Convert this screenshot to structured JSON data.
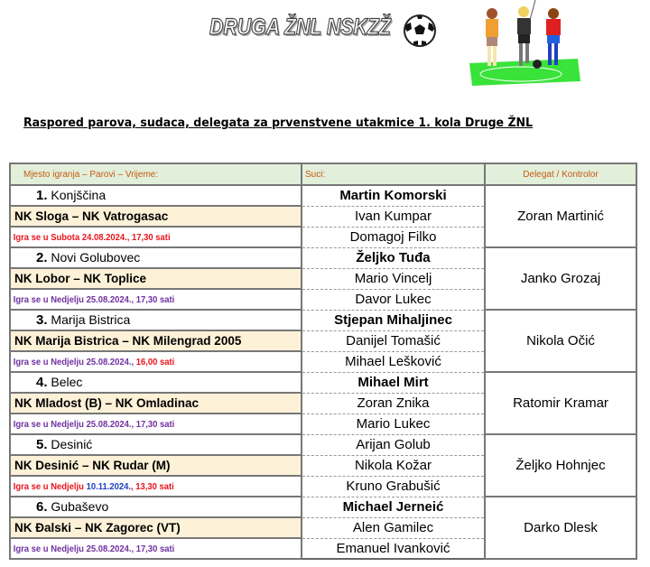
{
  "header": {
    "title": "DRUGA ŽNL NSKZŽ",
    "ball_icon": "soccer-ball-icon",
    "illustration": "referee-and-players-illustration"
  },
  "subtitle": "Raspored  parova,  sudaca, delegata za  prvenstvene  utakmice  1. kola Druge ŽNL",
  "table": {
    "headers": [
      "Mjesto igranja – Parovi – Vrijeme:",
      "Suci:",
      "Delegat / Kontrolor"
    ],
    "colors": {
      "header_bg": "#e2efda",
      "header_text": "#c55a11",
      "pair_bg": "#fdf1d8",
      "red": "#e8141c",
      "purple": "#7030a0",
      "blue": "#1f3fbf"
    },
    "matches": [
      {
        "num": "1.",
        "place": "Konjščina",
        "pair": "NK Sloga – NK Vatrogasac",
        "time": [
          {
            "t": "Igra se u Subota 24.08.2024., 17,30 sati",
            "c": "red"
          }
        ],
        "referees": [
          "Martin Komorski",
          "Ivan Kumpar",
          "Domagoj Filko"
        ],
        "main_bold": true,
        "delegate": "Zoran Martinić"
      },
      {
        "num": "2.",
        "place": "Novi Golubovec",
        "pair": "NK Lobor – NK Toplice",
        "time": [
          {
            "t": "Igra se u Nedjelju 25.08.2024., 17,30 sati",
            "c": "purple"
          }
        ],
        "referees": [
          "Željko Tuđa",
          "Mario Vincelj",
          "Davor Lukec"
        ],
        "main_bold": true,
        "delegate": "Janko Grozaj"
      },
      {
        "num": "3.",
        "place": "Marija Bistrica",
        "pair": "NK Marija Bistrica – NK Milengrad 2005",
        "time": [
          {
            "t": "Igra se u Nedjelju 25.08.2024., ",
            "c": "purple"
          },
          {
            "t": "16,00 sati",
            "c": "red"
          }
        ],
        "referees": [
          "Stjepan Mihaljinec",
          "Danijel Tomašić",
          "Mihael Lešković"
        ],
        "main_bold": true,
        "delegate": "Nikola Očić"
      },
      {
        "num": "4.",
        "place": "Belec",
        "pair": "NK Mladost (B) – NK Omladinac",
        "time": [
          {
            "t": "Igra se u Nedjelju 25.08.2024., 17,30 sati",
            "c": "purple"
          }
        ],
        "referees": [
          "Mihael Mirt",
          "Zoran Znika",
          "Mario Lukec"
        ],
        "main_bold": true,
        "delegate": "Ratomir Kramar"
      },
      {
        "num": "5.",
        "place": "Desinić",
        "pair": "NK Desinić – NK Rudar (M)",
        "time": [
          {
            "t": "Igra se u Nedjelju ",
            "c": "red"
          },
          {
            "t": "10.11.2024.",
            "c": "blue"
          },
          {
            "t": ", 13,30 sati",
            "c": "red"
          }
        ],
        "referees": [
          "Arijan Golub",
          "Nikola Kožar",
          "Kruno Grabušić"
        ],
        "main_bold": false,
        "delegate": "Željko Hohnjec"
      },
      {
        "num": "6.",
        "place": "Gubaševo",
        "pair": "NK Đalski – NK Zagorec (VT)",
        "time": [
          {
            "t": "Igra se u Nedjelju 25.08.2024., 17,30 sati",
            "c": "purple"
          }
        ],
        "referees": [
          "Michael Jerneić",
          "Alen Gamilec",
          "Emanuel Ivanković"
        ],
        "main_bold": true,
        "delegate": "Darko Dlesk"
      }
    ]
  }
}
